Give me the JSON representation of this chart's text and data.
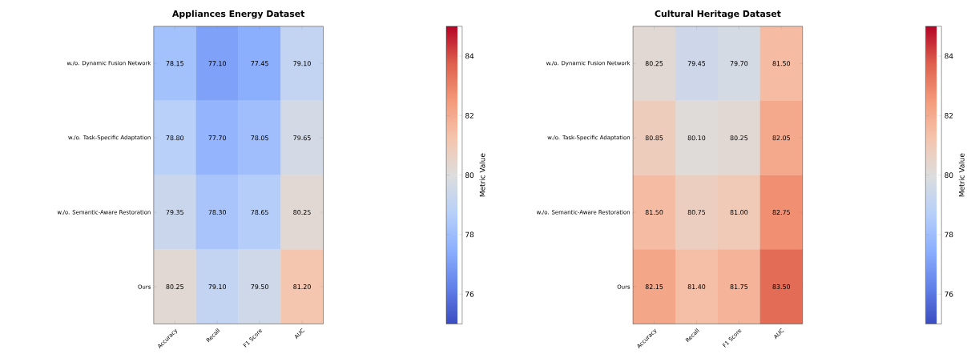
{
  "chart_data": [
    {
      "type": "heatmap",
      "title": "Appliances Energy Dataset",
      "categories": [
        "Accuracy",
        "Recall",
        "F1 Score",
        "AUC"
      ],
      "y_categories": [
        "w./o. Dynamic Fusion Network",
        "w./o. Task-Specific Adaptation",
        "w./o. Semantic-Aware Restoration",
        "Ours"
      ],
      "cells": [
        [
          78.15,
          77.1,
          77.45,
          79.1
        ],
        [
          78.8,
          77.7,
          78.05,
          79.65
        ],
        [
          79.35,
          78.3,
          78.65,
          80.25
        ],
        [
          80.25,
          79.1,
          79.5,
          81.2
        ]
      ],
      "cell_labels": [
        [
          "78.15",
          "77.10",
          "77.45",
          "79.10"
        ],
        [
          "78.80",
          "77.70",
          "78.05",
          "79.65"
        ],
        [
          "79.35",
          "78.30",
          "78.65",
          "80.25"
        ],
        [
          "80.25",
          "79.10",
          "79.50",
          "81.20"
        ]
      ],
      "clim": [
        75,
        85
      ],
      "cticks": [
        76,
        78,
        80,
        82,
        84
      ],
      "clabel": "Metric Value"
    },
    {
      "type": "heatmap",
      "title": "Cultural Heritage Dataset",
      "categories": [
        "Accuracy",
        "Recall",
        "F1 Score",
        "AUC"
      ],
      "y_categories": [
        "w./o. Dynamic Fusion Network",
        "w./o. Task-Specific Adaptation",
        "w./o. Semantic-Aware Restoration",
        "Ours"
      ],
      "cells": [
        [
          80.25,
          79.45,
          79.7,
          81.5
        ],
        [
          80.85,
          80.1,
          80.25,
          82.05
        ],
        [
          81.5,
          80.75,
          81.0,
          82.75
        ],
        [
          82.15,
          81.4,
          81.75,
          83.5
        ]
      ],
      "cell_labels": [
        [
          "80.25",
          "79.45",
          "79.70",
          "81.50"
        ],
        [
          "80.85",
          "80.10",
          "80.25",
          "82.05"
        ],
        [
          "81.50",
          "80.75",
          "81.00",
          "82.75"
        ],
        [
          "82.15",
          "81.40",
          "81.75",
          "83.50"
        ]
      ],
      "clim": [
        75,
        85
      ],
      "cticks": [
        76,
        78,
        80,
        82,
        84
      ],
      "clabel": "Metric Value"
    }
  ]
}
